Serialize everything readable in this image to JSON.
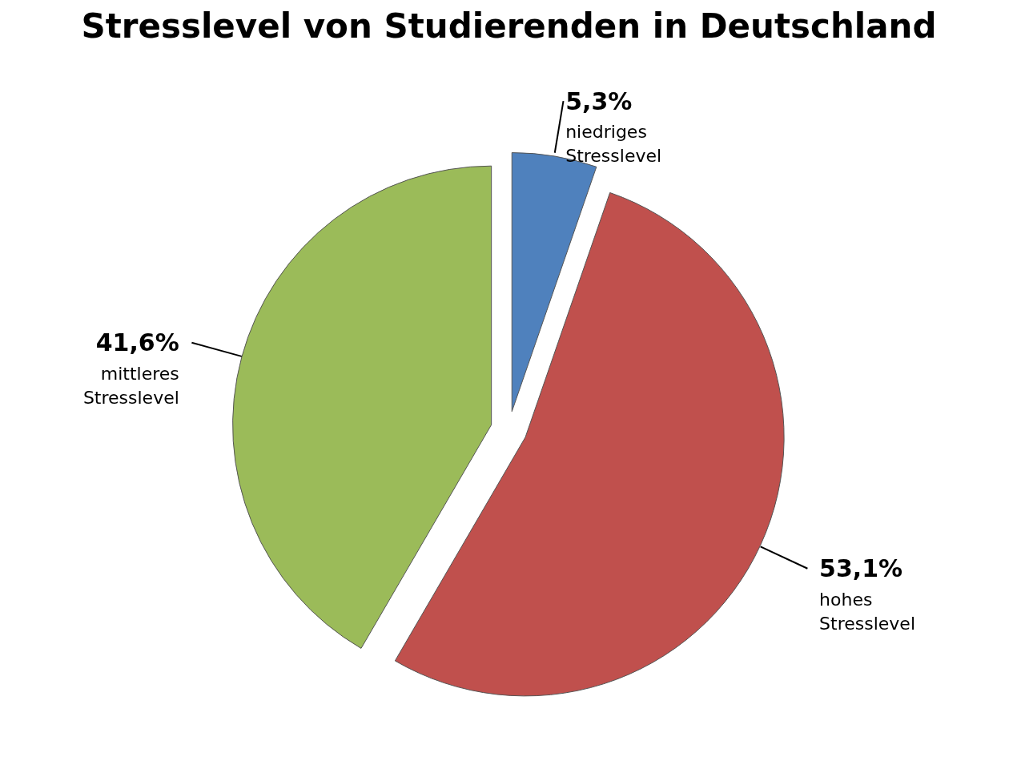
{
  "chart_data": {
    "type": "pie",
    "title": "Stresslevel von Studierenden in Deutschland",
    "categories": [
      "niedriges Stresslevel",
      "hohes Stresslevel",
      "mittleres Stresslevel"
    ],
    "values": [
      5.3,
      53.1,
      41.6
    ],
    "colors": [
      "#4f81bd",
      "#c0504d",
      "#9bbb59"
    ],
    "value_labels": [
      "5,3%",
      "53,1%",
      "41,6%"
    ]
  }
}
